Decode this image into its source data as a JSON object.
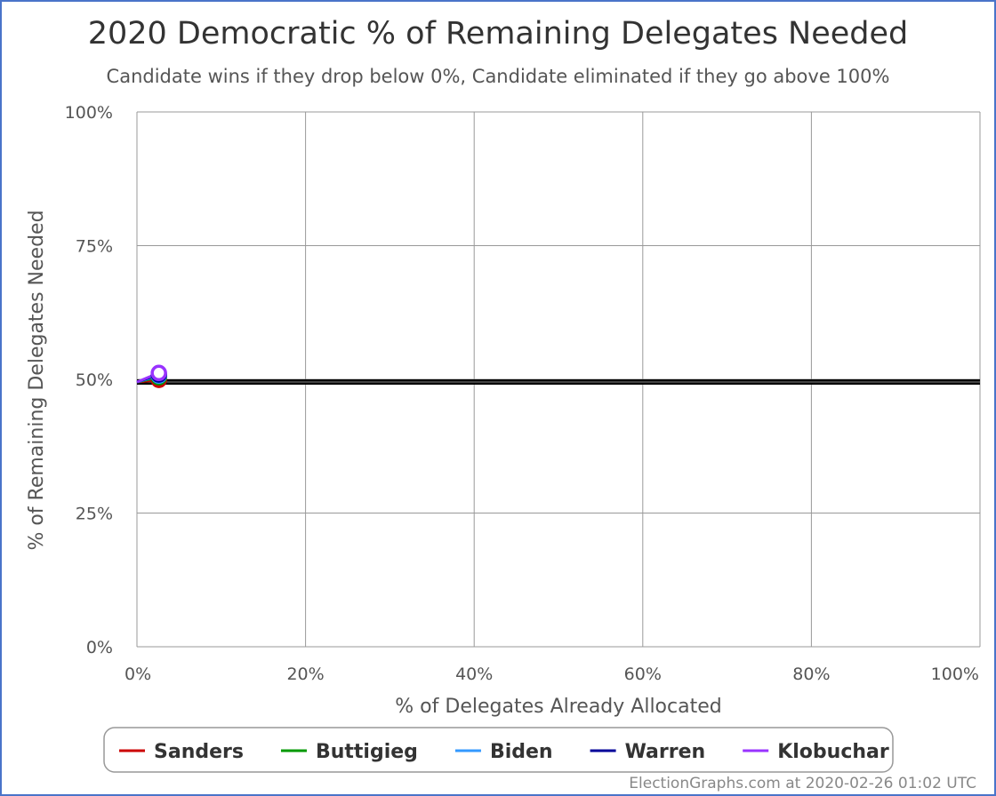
{
  "chart_data": {
    "type": "line",
    "title": "2020 Democratic % of Remaining Delegates Needed",
    "subtitle": "Candidate wins if they drop below 0%, Candidate eliminated if they go above 100%",
    "xlabel": "% of Delegates Already Allocated",
    "ylabel": "% of Remaining Delegates Needed",
    "xlim": [
      0,
      100
    ],
    "ylim": [
      0,
      100
    ],
    "x_ticks": [
      "0%",
      "20%",
      "40%",
      "60%",
      "80%",
      "100%"
    ],
    "y_ticks": [
      "0%",
      "25%",
      "50%",
      "75%",
      "100%"
    ],
    "grid": true,
    "legend_position": "bottom",
    "reference_line": {
      "y": 49.5,
      "color": "#000000"
    },
    "series": [
      {
        "name": "Sanders",
        "color": "#cc0000",
        "x": [
          0,
          2.6
        ],
        "y": [
          49.5,
          49.9
        ]
      },
      {
        "name": "Buttigieg",
        "color": "#009900",
        "x": [
          0,
          2.6
        ],
        "y": [
          49.5,
          50.4
        ]
      },
      {
        "name": "Biden",
        "color": "#3399ff",
        "x": [
          0,
          2.6
        ],
        "y": [
          49.5,
          50.7
        ]
      },
      {
        "name": "Warren",
        "color": "#000099",
        "x": [
          0,
          2.6
        ],
        "y": [
          49.5,
          50.9
        ]
      },
      {
        "name": "Klobuchar",
        "color": "#9933ff",
        "x": [
          0,
          2.6
        ],
        "y": [
          49.5,
          51.2
        ]
      }
    ]
  },
  "credit": "ElectionGraphs.com at 2020-02-26 01:02 UTC"
}
